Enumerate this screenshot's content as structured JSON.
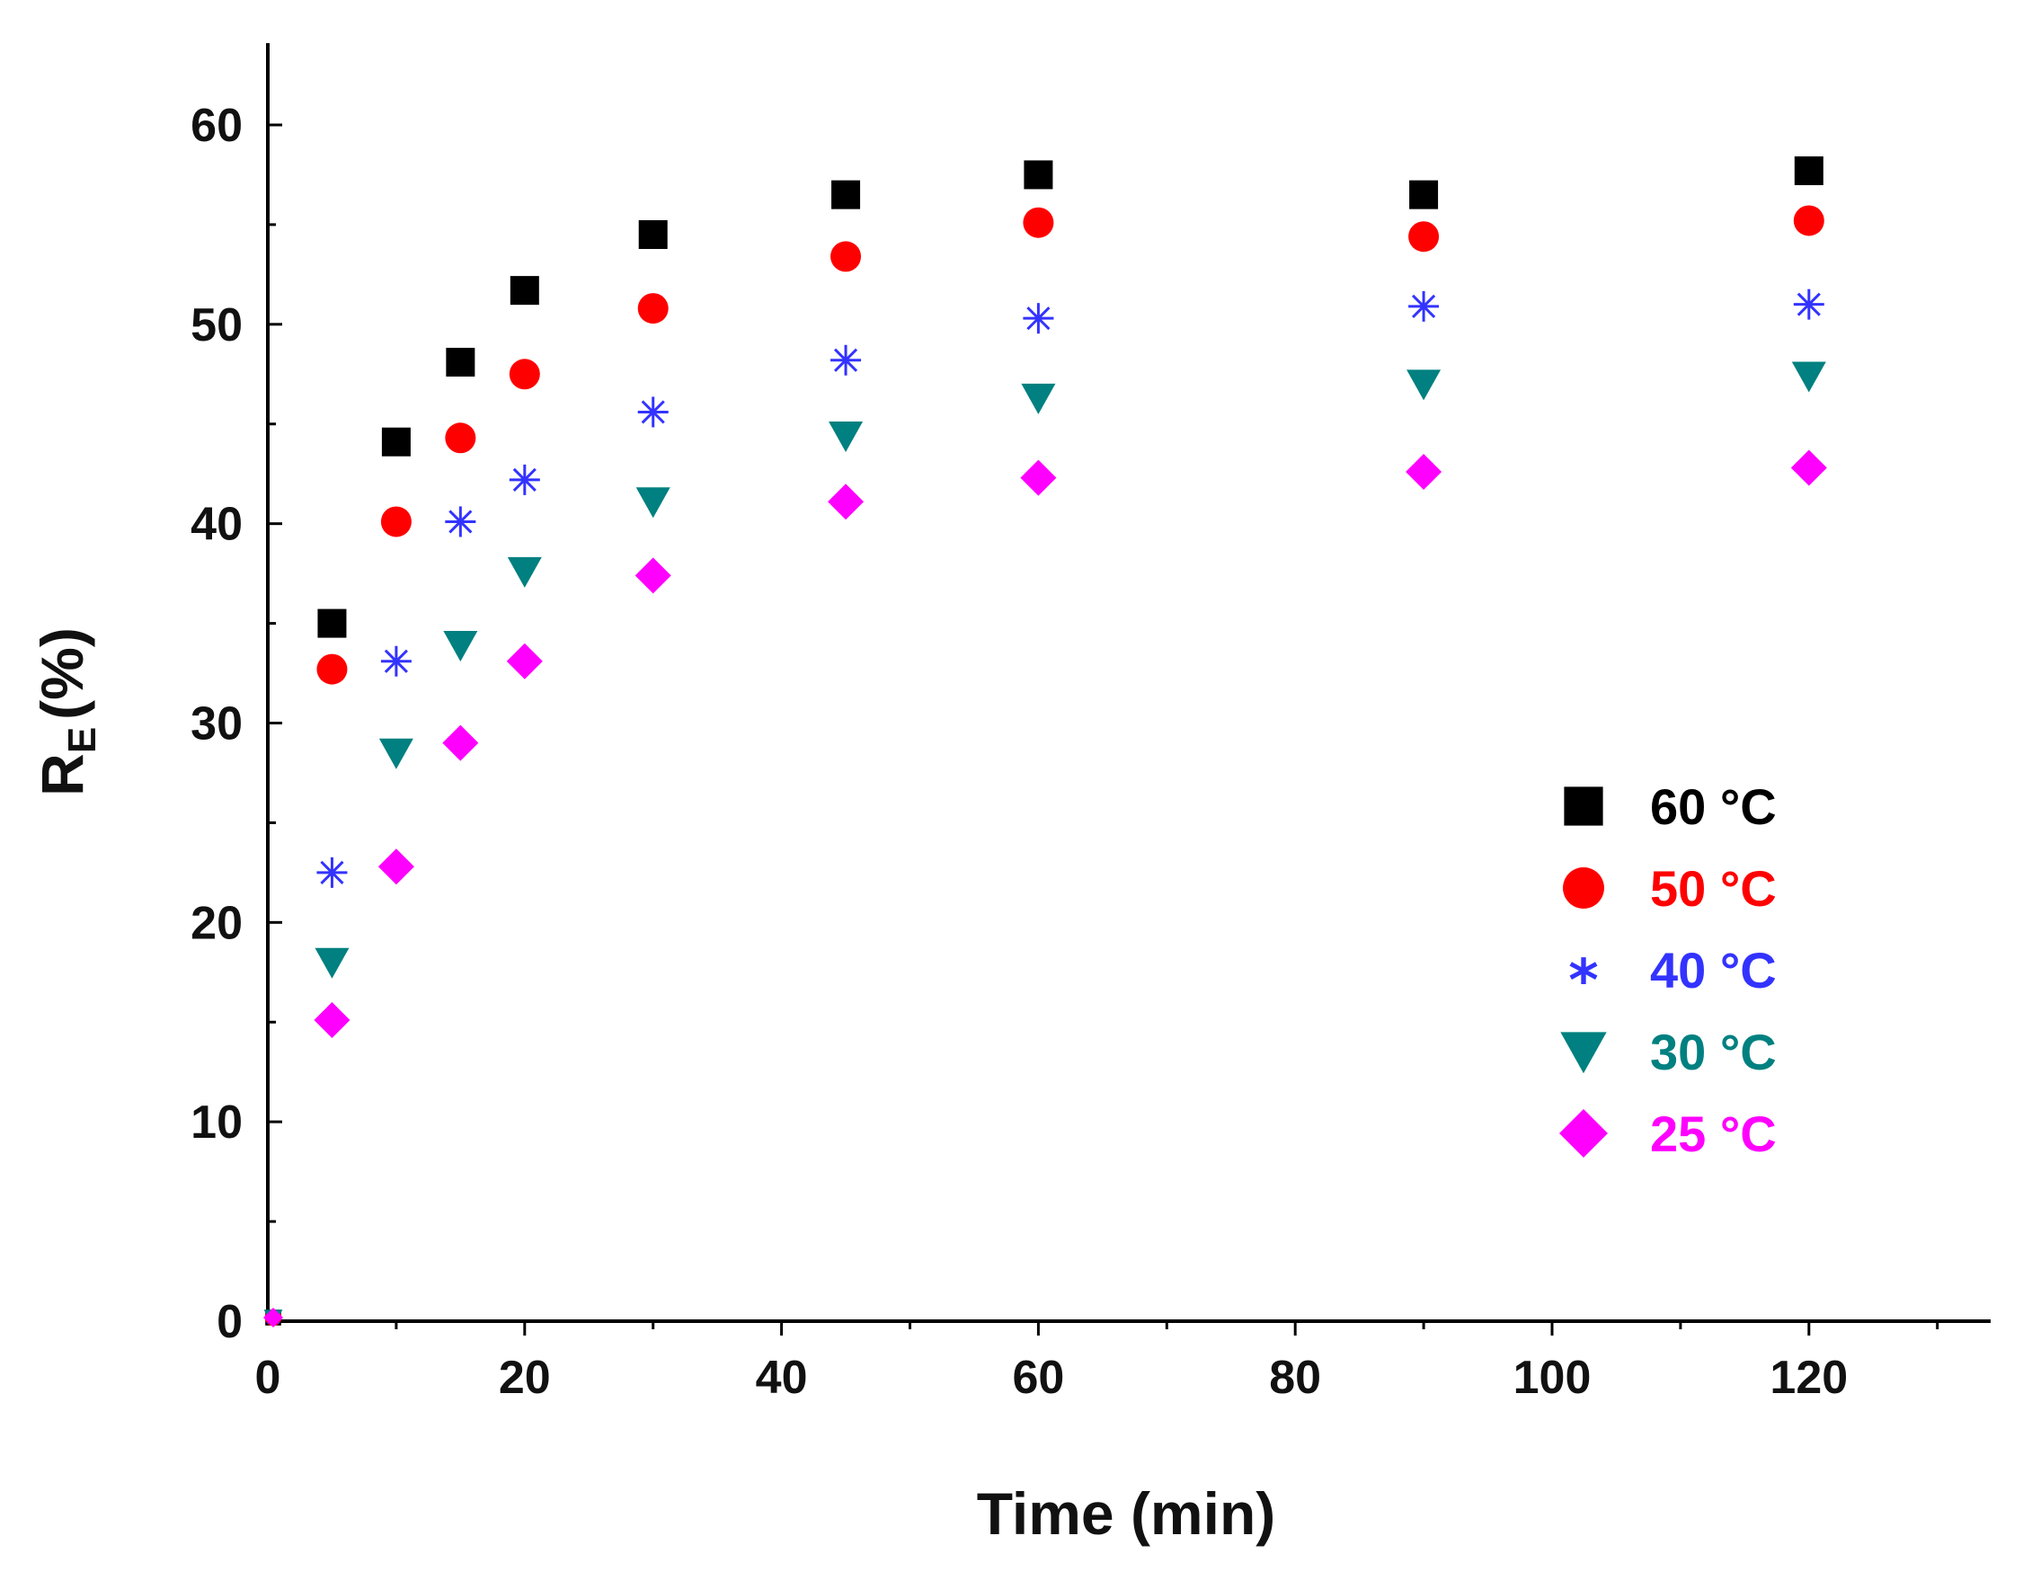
{
  "chart_data": {
    "type": "scatter",
    "title": "",
    "xlabel": "Time (min)",
    "ylabel_main": "R",
    "ylabel_sub": "E",
    "ylabel_suffix": "(%)",
    "xlim": [
      0,
      130
    ],
    "ylim": [
      0,
      64
    ],
    "xticks": [
      0,
      20,
      40,
      60,
      80,
      100,
      120
    ],
    "yticks": [
      0,
      10,
      20,
      30,
      40,
      50,
      60
    ],
    "xtick_labels": [
      "0",
      "20",
      "40",
      "60",
      "80",
      "100",
      "120"
    ],
    "ytick_labels": [
      "0",
      "10",
      "20",
      "30",
      "40",
      "50",
      "60"
    ],
    "grid": false,
    "legend_position": "right-middle",
    "series": [
      {
        "name": "60 °C",
        "color": "#000000",
        "marker": "square",
        "x": [
          0,
          5,
          10,
          15,
          20,
          30,
          45,
          60,
          90,
          120
        ],
        "y": [
          0,
          35.0,
          44.1,
          48.1,
          51.7,
          54.5,
          56.5,
          57.5,
          56.5,
          57.7
        ]
      },
      {
        "name": "50 °C",
        "color": "#ff0000",
        "marker": "circle",
        "x": [
          0,
          5,
          10,
          15,
          20,
          30,
          45,
          60,
          90,
          120
        ],
        "y": [
          0,
          32.7,
          40.1,
          44.3,
          47.5,
          50.8,
          53.4,
          55.1,
          54.4,
          55.2
        ]
      },
      {
        "name": "40 °C",
        "color": "#3333ff",
        "marker": "asterisk",
        "x": [
          0,
          5,
          10,
          15,
          20,
          30,
          45,
          60,
          90,
          120
        ],
        "y": [
          0,
          22.5,
          33.1,
          40.1,
          42.2,
          45.6,
          48.2,
          50.3,
          50.9,
          51.0
        ]
      },
      {
        "name": "30 °C",
        "color": "#008080",
        "marker": "triangle-down",
        "x": [
          0,
          5,
          10,
          15,
          20,
          30,
          45,
          60,
          90,
          120
        ],
        "y": [
          0,
          18.0,
          28.5,
          33.9,
          37.6,
          41.1,
          44.4,
          46.3,
          47.0,
          47.4
        ]
      },
      {
        "name": "25 °C",
        "color": "#ff00ff",
        "marker": "diamond",
        "x": [
          0,
          5,
          10,
          15,
          20,
          30,
          45,
          60,
          90,
          120
        ],
        "y": [
          0,
          15.1,
          22.8,
          29.0,
          33.1,
          37.4,
          41.1,
          42.3,
          42.6,
          42.8
        ]
      }
    ]
  }
}
